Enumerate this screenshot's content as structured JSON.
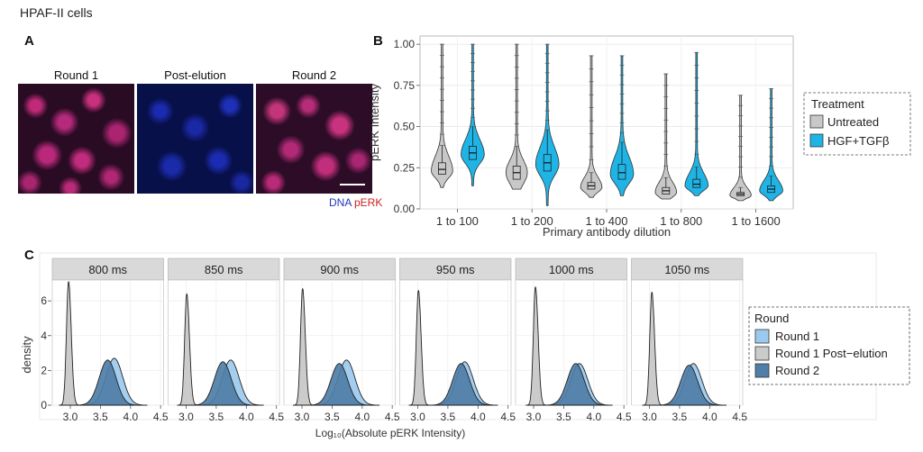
{
  "figure": {
    "header": "HPAF-II cells",
    "panel_a": {
      "letter": "A",
      "rounds": [
        "Round 1",
        "Post-elution",
        "Round 2"
      ],
      "channel_labels": [
        {
          "text": "DNA",
          "color": "#2233bb"
        },
        {
          "text": "pERK",
          "color": "#cc2222"
        }
      ]
    },
    "panel_b": {
      "letter": "B"
    },
    "panel_c": {
      "letter": "C"
    }
  },
  "chart_data": [
    {
      "type": "violin",
      "panel": "B",
      "title": "",
      "xlabel": "Primary antibody dilution",
      "ylabel": "pERK Intensity",
      "ylim": [
        0,
        1.05
      ],
      "yticks": [
        "0.00",
        "0.25",
        "0.50",
        "0.75",
        "1.00"
      ],
      "categories": [
        "1 to 100",
        "1 to 200",
        "1 to 400",
        "1 to 800",
        "1 to 1600"
      ],
      "legend": {
        "title": "Treatment",
        "position": "right",
        "entries": [
          {
            "name": "Untreated",
            "color": "#c8c8c8"
          },
          {
            "name": "HGF+TGFβ",
            "color": "#1fb4e6"
          }
        ]
      },
      "series": [
        {
          "name": "Untreated",
          "color": "#c8c8c8",
          "median": [
            0.24,
            0.22,
            0.14,
            0.11,
            0.09
          ],
          "q1": [
            0.21,
            0.18,
            0.12,
            0.09,
            0.08
          ],
          "q3": [
            0.28,
            0.26,
            0.16,
            0.13,
            0.1
          ],
          "min": [
            0.13,
            0.12,
            0.07,
            0.06,
            0.05
          ],
          "max": [
            1.0,
            1.0,
            0.93,
            0.82,
            0.69
          ],
          "mode": [
            0.23,
            0.22,
            0.13,
            0.1,
            0.08
          ]
        },
        {
          "name": "HGF+TGFβ",
          "color": "#1fb4e6",
          "median": [
            0.34,
            0.28,
            0.22,
            0.15,
            0.12
          ],
          "q1": [
            0.3,
            0.23,
            0.18,
            0.13,
            0.1
          ],
          "q3": [
            0.38,
            0.33,
            0.27,
            0.18,
            0.14
          ],
          "min": [
            0.14,
            0.02,
            0.08,
            0.08,
            0.05
          ],
          "max": [
            1.0,
            1.0,
            0.93,
            0.95,
            0.73
          ],
          "mode": [
            0.33,
            0.27,
            0.21,
            0.14,
            0.11
          ]
        }
      ]
    },
    {
      "type": "area",
      "panel": "C",
      "xlabel": "Log₁₀(Absolute pERK Intensity)",
      "ylabel": "density",
      "xlim": [
        2.7,
        4.55
      ],
      "ylim": [
        0,
        7.2
      ],
      "xticks": [
        "3.0",
        "3.5",
        "4.0",
        "4.5"
      ],
      "yticks": [
        "0",
        "2",
        "4",
        "6"
      ],
      "facets": [
        "800 ms",
        "850 ms",
        "900 ms",
        "950 ms",
        "1000 ms",
        "1050 ms"
      ],
      "legend": {
        "title": "Round",
        "position": "right",
        "entries": [
          {
            "name": "Round 1",
            "color": "#9ccaee"
          },
          {
            "name": "Round 1 Post−elution",
            "color": "#cbcbcb"
          },
          {
            "name": "Round 2",
            "color": "#4f7ea7"
          }
        ]
      },
      "series": [
        {
          "name": "Round 1 Post−elution",
          "color": "#cbcbcb",
          "peak_x": [
            2.97,
            3.01,
            3.01,
            3.01,
            3.03,
            3.04
          ],
          "peak_density": [
            7.1,
            6.4,
            6.7,
            6.6,
            6.8,
            6.5
          ]
        },
        {
          "name": "Round 1",
          "color": "#9ccaee",
          "peak_x": [
            3.73,
            3.74,
            3.74,
            3.78,
            3.76,
            3.73
          ],
          "peak_density": [
            2.7,
            2.6,
            2.6,
            2.5,
            2.4,
            2.4
          ]
        },
        {
          "name": "Round 2",
          "color": "#4f7ea7",
          "peak_x": [
            3.62,
            3.61,
            3.62,
            3.72,
            3.7,
            3.66
          ],
          "peak_density": [
            2.6,
            2.5,
            2.4,
            2.4,
            2.4,
            2.3
          ]
        }
      ]
    }
  ]
}
